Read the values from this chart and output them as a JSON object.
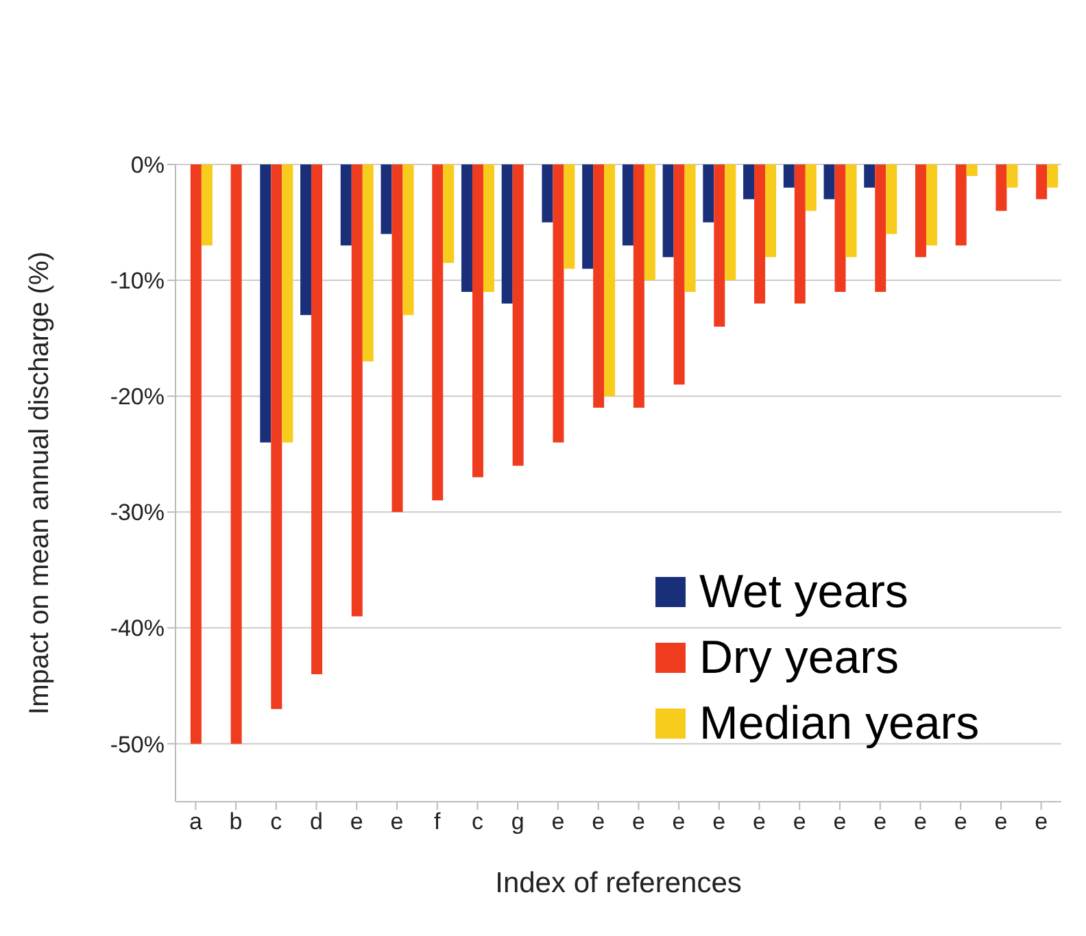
{
  "chart_data": {
    "type": "bar",
    "xlabel": "Index of references",
    "ylabel": "Impact on mean annual discharge (%)",
    "categories": [
      "a",
      "b",
      "c",
      "d",
      "e",
      "e",
      "f",
      "c",
      "g",
      "e",
      "e",
      "e",
      "e",
      "e",
      "e",
      "e",
      "e",
      "e",
      "e",
      "e",
      "e",
      "e"
    ],
    "series": [
      {
        "name": "Wet years",
        "color": "#1a2f7a",
        "values": [
          null,
          null,
          -24,
          -13,
          -7,
          -6,
          null,
          -11,
          -12,
          -5,
          -9,
          -7,
          -8,
          -5,
          -3,
          -2,
          -3,
          -2,
          null,
          null,
          null,
          null
        ]
      },
      {
        "name": "Dry years",
        "color": "#f03c1e",
        "values": [
          -50,
          -50,
          -47,
          -44,
          -39,
          -30,
          -29,
          -27,
          -26,
          -24,
          -21,
          -21,
          -19,
          -14,
          -12,
          -12,
          -11,
          -11,
          -8,
          -7,
          -4,
          -3
        ]
      },
      {
        "name": "Median years",
        "color": "#f8cc1c",
        "values": [
          -7,
          null,
          -24,
          null,
          -17,
          -13,
          -8.5,
          -11,
          null,
          -9,
          -20,
          -10,
          -11,
          -10,
          -8,
          -4,
          -8,
          -6,
          -7,
          -1,
          -2,
          -2
        ]
      }
    ],
    "ylim": [
      -55,
      0
    ],
    "yticks": [
      {
        "value": -50,
        "label": "-50%"
      },
      {
        "value": -40,
        "label": "-40%"
      },
      {
        "value": -30,
        "label": "-30%"
      },
      {
        "value": -20,
        "label": "-20%"
      },
      {
        "value": -10,
        "label": "-10%"
      },
      {
        "value": 0,
        "label": "0%"
      }
    ],
    "grid": "y",
    "legend": "bottom right"
  }
}
